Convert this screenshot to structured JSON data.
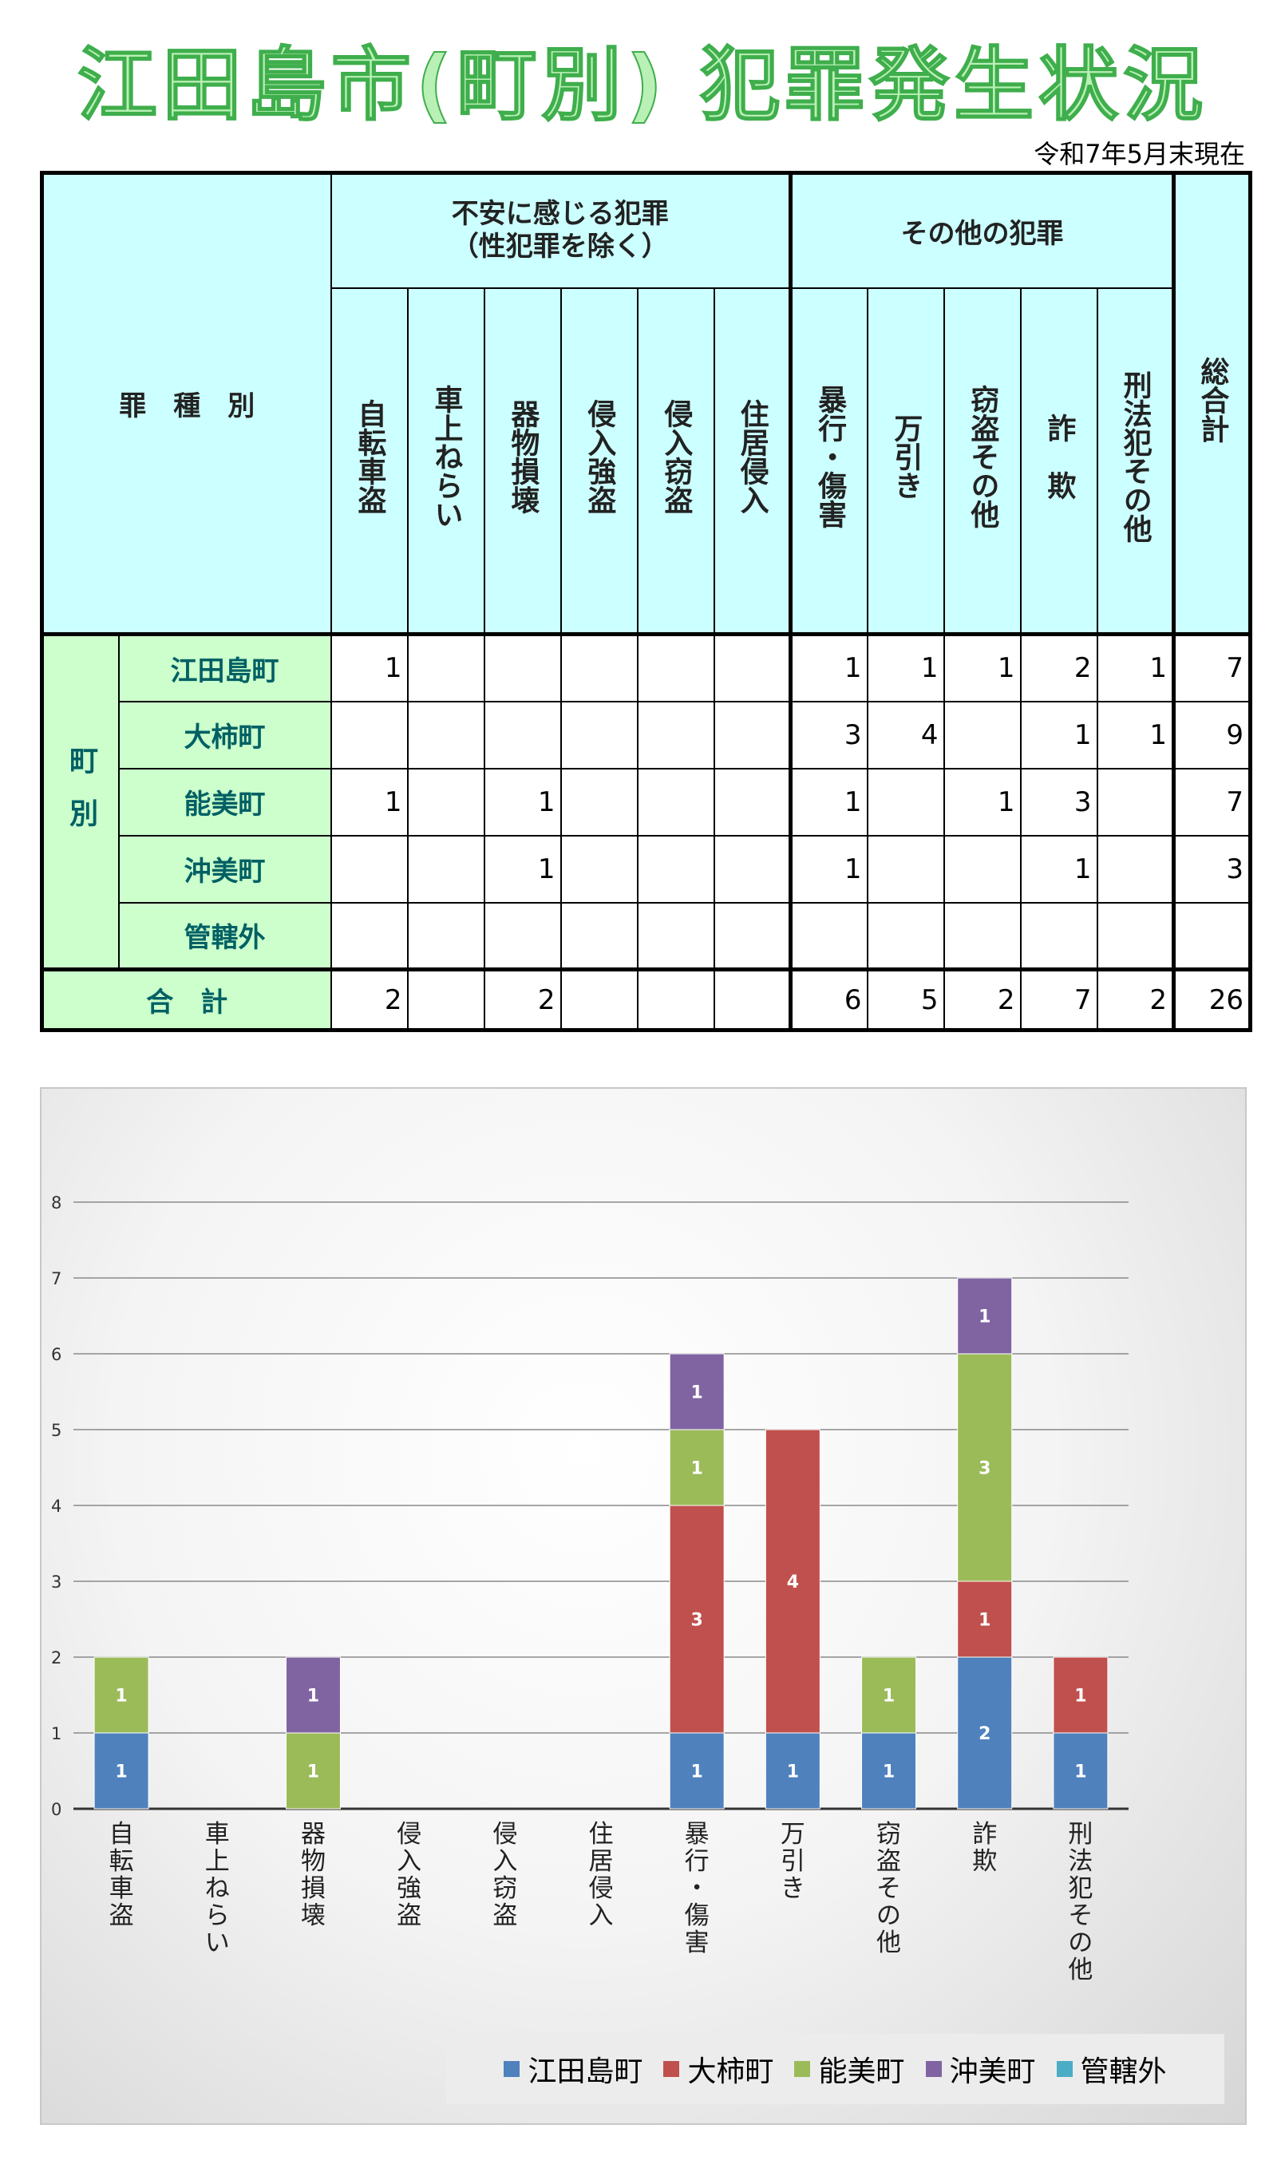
{
  "title": "江田島市(町別) 犯罪発生状況",
  "as_of": "令和7年5月末現在",
  "table": {
    "corner": "罪　種　別",
    "group1": "不安に感じる犯罪\n（性犯罪を除く）",
    "group2": "その他の犯罪",
    "total_header": "総合計",
    "columns": [
      "自転車盗",
      "車上ねらい",
      "器物損壊",
      "侵入強盗",
      "侵入窃盗",
      "住居侵入",
      "暴行・傷害",
      "万引き",
      "窃盗その他",
      "詐　欺",
      "刑法犯その他"
    ],
    "town_group": "町別",
    "rows": [
      {
        "name": "江田島町",
        "cells": [
          "1",
          "",
          "",
          "",
          "",
          "",
          "1",
          "1",
          "1",
          "2",
          "1"
        ],
        "total": "7"
      },
      {
        "name": "大柿町",
        "cells": [
          "",
          "",
          "",
          "",
          "",
          "",
          "3",
          "4",
          "",
          "1",
          "1"
        ],
        "total": "9"
      },
      {
        "name": "能美町",
        "cells": [
          "1",
          "",
          "1",
          "",
          "",
          "",
          "1",
          "",
          "1",
          "3",
          ""
        ],
        "total": "7"
      },
      {
        "name": "沖美町",
        "cells": [
          "",
          "",
          "1",
          "",
          "",
          "",
          "1",
          "",
          "",
          "1",
          ""
        ],
        "total": "3"
      },
      {
        "name": "管轄外",
        "cells": [
          "",
          "",
          "",
          "",
          "",
          "",
          "",
          "",
          "",
          "",
          ""
        ],
        "total": ""
      }
    ],
    "sum_row": {
      "name": "合　計",
      "cells": [
        "2",
        "",
        "2",
        "",
        "",
        "",
        "6",
        "5",
        "2",
        "7",
        "2"
      ],
      "total": "26"
    }
  },
  "chart_data": {
    "type": "bar",
    "stacked": true,
    "categories": [
      "自転車盗",
      "車上ねらい",
      "器物損壊",
      "侵入強盗",
      "侵入窃盗",
      "住居侵入",
      "暴行・傷害",
      "万引き",
      "窃盗その他",
      "詐　欺",
      "刑法犯その他"
    ],
    "series": [
      {
        "name": "江田島町",
        "color": "#4f81bd",
        "values": [
          1,
          0,
          0,
          0,
          0,
          0,
          1,
          1,
          1,
          2,
          1
        ]
      },
      {
        "name": "大柿町",
        "color": "#c0504d",
        "values": [
          0,
          0,
          0,
          0,
          0,
          0,
          3,
          4,
          0,
          1,
          1
        ]
      },
      {
        "name": "能美町",
        "color": "#9bbb59",
        "values": [
          1,
          0,
          1,
          0,
          0,
          0,
          1,
          0,
          1,
          3,
          0
        ]
      },
      {
        "name": "沖美町",
        "color": "#8064a2",
        "values": [
          0,
          0,
          1,
          0,
          0,
          0,
          1,
          0,
          0,
          1,
          0
        ]
      },
      {
        "name": "管轄外",
        "color": "#4bacc6",
        "values": [
          0,
          0,
          0,
          0,
          0,
          0,
          0,
          0,
          0,
          0,
          0
        ]
      }
    ],
    "yticks": [
      "0",
      "1",
      "2",
      "3",
      "4",
      "5",
      "6",
      "7",
      "8"
    ],
    "ylim": [
      0,
      8
    ],
    "grid": true,
    "legend": "bottom-right"
  }
}
